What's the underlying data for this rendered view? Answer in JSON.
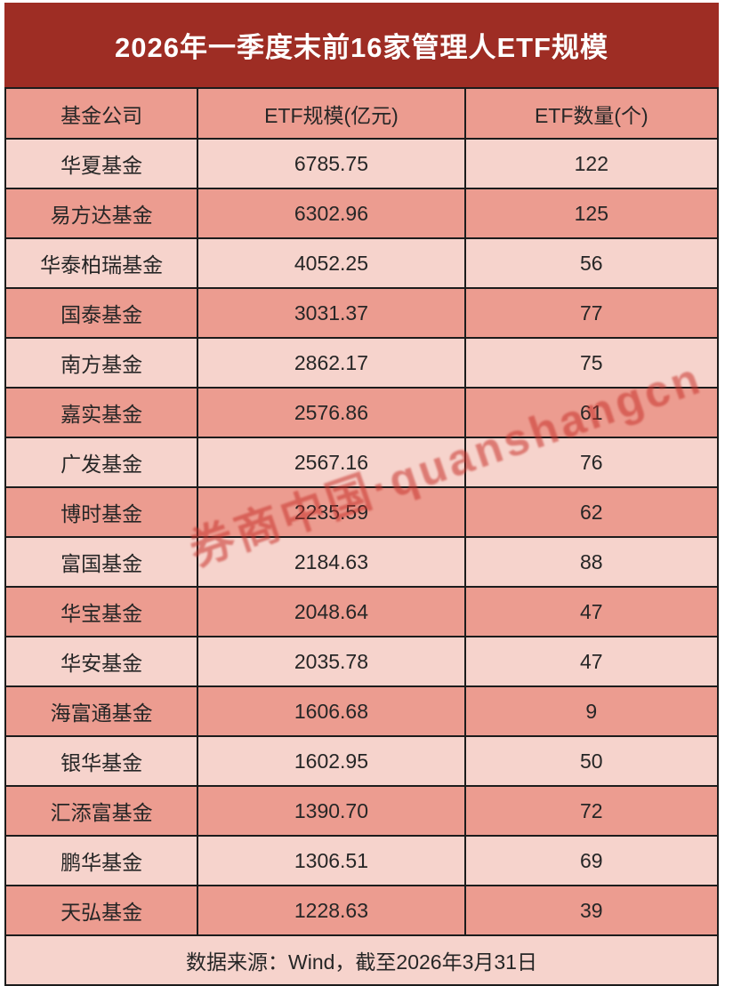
{
  "title": "2026年一季度末前16家管理人ETF规模",
  "table": {
    "columns": [
      "基金公司",
      "ETF规模(亿元)",
      "ETF数量(个)"
    ],
    "rows": [
      {
        "company": "华夏基金",
        "scale": "6785.75",
        "count": "122"
      },
      {
        "company": "易方达基金",
        "scale": "6302.96",
        "count": "125"
      },
      {
        "company": "华泰柏瑞基金",
        "scale": "4052.25",
        "count": "56"
      },
      {
        "company": "国泰基金",
        "scale": "3031.37",
        "count": "77"
      },
      {
        "company": "南方基金",
        "scale": "2862.17",
        "count": "75"
      },
      {
        "company": "嘉实基金",
        "scale": "2576.86",
        "count": "61"
      },
      {
        "company": "广发基金",
        "scale": "2567.16",
        "count": "76"
      },
      {
        "company": "博时基金",
        "scale": "2235.59",
        "count": "62"
      },
      {
        "company": "富国基金",
        "scale": "2184.63",
        "count": "88"
      },
      {
        "company": "华宝基金",
        "scale": "2048.64",
        "count": "47"
      },
      {
        "company": "华安基金",
        "scale": "2035.78",
        "count": "47"
      },
      {
        "company": "海富通基金",
        "scale": "1606.68",
        "count": "9"
      },
      {
        "company": "银华基金",
        "scale": "1602.95",
        "count": "50"
      },
      {
        "company": "汇添富基金",
        "scale": "1390.70",
        "count": "72"
      },
      {
        "company": "鹏华基金",
        "scale": "1306.51",
        "count": "69"
      },
      {
        "company": "天弘基金",
        "scale": "1228.63",
        "count": "39"
      }
    ]
  },
  "footer": {
    "text": "数据来源：Wind，截至2026年3月31日"
  },
  "watermark": {
    "text": "券商中国·quanshangcn"
  },
  "colors": {
    "title_bg": "#9E2D24",
    "title_text": "#FFFFFF",
    "row_dark": "#EC9C90",
    "row_light": "#F6D3CC",
    "border": "#1C1C1C",
    "text": "#262626",
    "watermark": "#C8322B"
  },
  "chart_data": {
    "type": "table",
    "title": "2026年一季度末前16家管理人ETF规模",
    "columns": [
      "基金公司",
      "ETF规模(亿元)",
      "ETF数量(个)"
    ],
    "rows": [
      [
        "华夏基金",
        6785.75,
        122
      ],
      [
        "易方达基金",
        6302.96,
        125
      ],
      [
        "华泰柏瑞基金",
        4052.25,
        56
      ],
      [
        "国泰基金",
        3031.37,
        77
      ],
      [
        "南方基金",
        2862.17,
        75
      ],
      [
        "嘉实基金",
        2576.86,
        61
      ],
      [
        "广发基金",
        2567.16,
        76
      ],
      [
        "博时基金",
        2235.59,
        62
      ],
      [
        "富国基金",
        2184.63,
        88
      ],
      [
        "华宝基金",
        2048.64,
        47
      ],
      [
        "华安基金",
        2035.78,
        47
      ],
      [
        "海富通基金",
        1606.68,
        9
      ],
      [
        "银华基金",
        1602.95,
        50
      ],
      [
        "汇添富基金",
        1390.7,
        72
      ],
      [
        "鹏华基金",
        1306.51,
        69
      ],
      [
        "天弘基金",
        1228.63,
        39
      ]
    ],
    "source_note": "数据来源：Wind，截至2026年3月31日",
    "layout": "alternating row colors (light pink / salmon), dark red title band, black cell borders"
  }
}
